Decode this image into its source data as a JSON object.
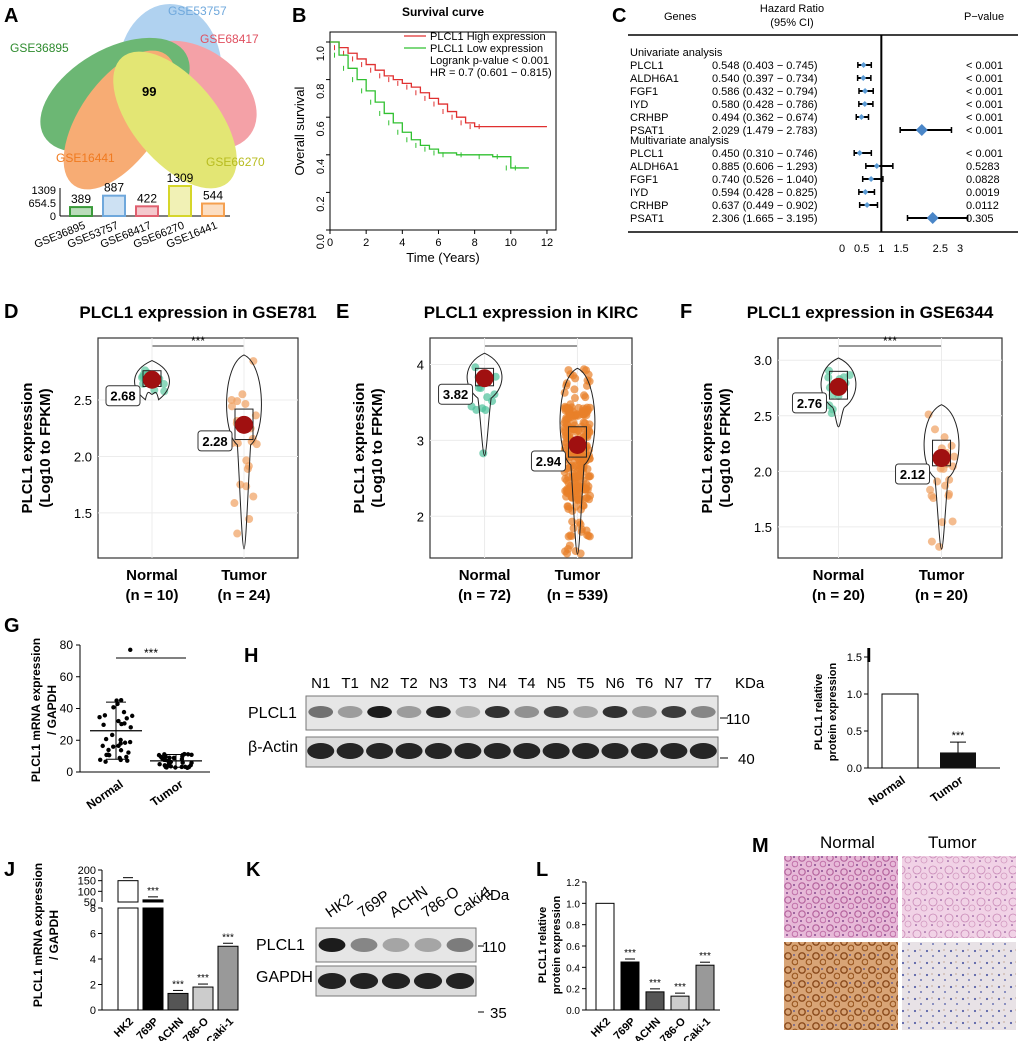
{
  "panels": {
    "A": "A",
    "B": "B",
    "C": "C",
    "D": "D",
    "E": "E",
    "F": "F",
    "G": "G",
    "H": "H",
    "I": "I",
    "J": "J",
    "K": "K",
    "L": "L",
    "M": "M"
  },
  "venn": {
    "sets": [
      "GSE53757",
      "GSE68417",
      "GSE36895",
      "GSE16441",
      "GSE66270"
    ],
    "center": "99",
    "bar": {
      "categories": [
        "GSE36895",
        "GSE53757",
        "GSE68417",
        "GSE66270",
        "GSE16441"
      ],
      "values": [
        389,
        887,
        422,
        1309,
        544
      ],
      "value_labels": [
        "389",
        "887",
        "422",
        "1309",
        "544"
      ],
      "ticks": [
        "1309",
        "654.5",
        "0"
      ],
      "colors": [
        "#3a9a3a",
        "#6fa8dc",
        "#e06070",
        "#d6d62a",
        "#f5a050"
      ]
    }
  },
  "survival": {
    "title": "Survival curve",
    "xlabel": "Time (Years)",
    "ylabel": "Overall survival",
    "legend": [
      "PLCL1 High expression",
      "PLCL1 Low expression"
    ],
    "logrank": "Logrank p-value < 0.001",
    "hr": "HR = 0.7 (0.601 − 0.815)",
    "xticks": [
      "0",
      "2",
      "4",
      "6",
      "8",
      "10",
      "12"
    ],
    "yticks": [
      "0.0",
      "0.2",
      "0.4",
      "0.6",
      "0.8",
      "1.0"
    ],
    "high": [
      [
        0,
        1
      ],
      [
        0.5,
        0.97
      ],
      [
        1,
        0.94
      ],
      [
        1.5,
        0.91
      ],
      [
        2,
        0.88
      ],
      [
        2.5,
        0.85
      ],
      [
        3,
        0.82
      ],
      [
        3.5,
        0.8
      ],
      [
        4,
        0.78
      ],
      [
        4.5,
        0.76
      ],
      [
        5,
        0.73
      ],
      [
        5.5,
        0.7
      ],
      [
        6,
        0.67
      ],
      [
        6.5,
        0.63
      ],
      [
        7,
        0.6
      ],
      [
        7.5,
        0.57
      ],
      [
        8,
        0.55
      ],
      [
        12,
        0.55
      ]
    ],
    "low": [
      [
        0,
        1
      ],
      [
        0.5,
        0.93
      ],
      [
        1,
        0.86
      ],
      [
        1.5,
        0.8
      ],
      [
        2,
        0.74
      ],
      [
        2.5,
        0.68
      ],
      [
        3,
        0.62
      ],
      [
        3.5,
        0.57
      ],
      [
        4,
        0.52
      ],
      [
        4.5,
        0.48
      ],
      [
        5,
        0.45
      ],
      [
        5.5,
        0.43
      ],
      [
        6,
        0.41
      ],
      [
        7,
        0.4
      ],
      [
        8,
        0.4
      ],
      [
        9,
        0.39
      ],
      [
        9.5,
        0.39
      ],
      [
        10,
        0.33
      ],
      [
        11,
        0.33
      ]
    ]
  },
  "forest": {
    "header": {
      "genes": "Genes",
      "hr": "Hazard Ratio",
      "ci": "(95% CI)",
      "p": "P−value"
    },
    "uni_label": "Univariate analysis",
    "multi_label": "Multivariate analysis",
    "rows": [
      {
        "gene": "PLCL1",
        "hr": "0.548 (0.403 − 0.745)",
        "p": "< 0.001",
        "est": 0.548,
        "lo": 0.403,
        "hi": 0.745,
        "color": "#5b9bd5"
      },
      {
        "gene": "ALDH6A1",
        "hr": "0.540 (0.397 − 0.734)",
        "p": "< 0.001",
        "est": 0.54,
        "lo": 0.397,
        "hi": 0.734,
        "color": "#5b9bd5"
      },
      {
        "gene": "FGF1",
        "hr": "0.586 (0.432 − 0.794)",
        "p": "< 0.001",
        "est": 0.586,
        "lo": 0.432,
        "hi": 0.794,
        "color": "#5b9bd5"
      },
      {
        "gene": "IYD",
        "hr": "0.580 (0.428 − 0.786)",
        "p": "< 0.001",
        "est": 0.58,
        "lo": 0.428,
        "hi": 0.786,
        "color": "#5b9bd5"
      },
      {
        "gene": "CRHBP",
        "hr": "0.494 (0.362 − 0.674)",
        "p": "< 0.001",
        "est": 0.494,
        "lo": 0.362,
        "hi": 0.674,
        "color": "#5b9bd5"
      },
      {
        "gene": "PSAT1",
        "hr": "2.029 (1.479 − 2.783)",
        "p": "< 0.001",
        "est": 2.029,
        "lo": 1.479,
        "hi": 2.783,
        "color": "#4a86c8"
      },
      {
        "gene": "PLCL1",
        "hr": "0.450 (0.310 − 0.746)",
        "p": "< 0.001",
        "est": 0.45,
        "lo": 0.31,
        "hi": 0.746,
        "color": "#5b9bd5"
      },
      {
        "gene": "ALDH6A1",
        "hr": "0.885 (0.606 − 1.293)",
        "p": "0.5283",
        "est": 0.885,
        "lo": 0.606,
        "hi": 1.293,
        "color": "#5b9bd5"
      },
      {
        "gene": "FGF1",
        "hr": "0.740 (0.526 − 1.040)",
        "p": "0.0828",
        "est": 0.74,
        "lo": 0.526,
        "hi": 1.04,
        "color": "#5b9bd5"
      },
      {
        "gene": "IYD",
        "hr": "0.594 (0.428 − 0.825)",
        "p": "0.0019",
        "est": 0.594,
        "lo": 0.428,
        "hi": 0.825,
        "color": "#5b9bd5"
      },
      {
        "gene": "CRHBP",
        "hr": "0.637 (0.449 − 0.902)",
        "p": "0.0112",
        "est": 0.637,
        "lo": 0.449,
        "hi": 0.902,
        "color": "#5b9bd5"
      },
      {
        "gene": "PSAT1",
        "hr": "2.306 (1.665 − 3.195)",
        "p": "0.305",
        "est": 2.306,
        "lo": 1.665,
        "hi": 3.195,
        "color": "#4a86c8"
      }
    ],
    "xticks": [
      "0",
      "0.5",
      "1",
      "1.5",
      "2.5",
      "3"
    ],
    "xtick_vals": [
      0,
      0.5,
      1,
      1.5,
      2.5,
      3
    ]
  },
  "violins": [
    {
      "title": "PLCL1 expression in GSE781",
      "ylabel1": "PLCL1 expression",
      "ylabel2": "(Log10 to FPKM)",
      "yticks": [
        "1.5",
        "2.0",
        "2.5"
      ],
      "ytick_vals": [
        1.5,
        2.0,
        2.5
      ],
      "ymin": 1.1,
      "ymax": 3.05,
      "sig": "***",
      "groups": [
        {
          "name": "Normal",
          "n": "(n = 10)",
          "mean": "2.68",
          "m": 2.68,
          "lo": 2.55,
          "hi": 2.85,
          "q1": 2.62,
          "q3": 2.76,
          "color": "#5cc8a0"
        },
        {
          "name": "Tumor",
          "n": "(n = 24)",
          "mean": "2.28",
          "m": 2.28,
          "lo": 1.18,
          "hi": 2.9,
          "q1": 2.15,
          "q3": 2.42,
          "color": "#f0a060"
        }
      ]
    },
    {
      "title": "PLCL1 expression in KIRC",
      "ylabel1": "PLCL1 expression",
      "ylabel2": "(Log10 to FPKM)",
      "yticks": [
        "2",
        "3",
        "4"
      ],
      "ytick_vals": [
        2,
        3,
        4
      ],
      "ymin": 1.45,
      "ymax": 4.35,
      "sig": "",
      "groups": [
        {
          "name": "Normal",
          "n": "(n = 72)",
          "mean": "3.82",
          "m": 3.82,
          "lo": 2.8,
          "hi": 4.15,
          "q1": 3.72,
          "q3": 3.95,
          "color": "#4cc09a"
        },
        {
          "name": "Tumor",
          "n": "(n = 539)",
          "mean": "2.94",
          "m": 2.94,
          "lo": 1.5,
          "hi": 3.95,
          "q1": 2.78,
          "q3": 3.18,
          "color": "#e8802a"
        }
      ]
    },
    {
      "title": "PLCL1 expression in GSE6344",
      "ylabel1": "PLCL1 expression",
      "ylabel2": "(Log10 to FPKM)",
      "yticks": [
        "1.5",
        "2.0",
        "2.5",
        "3.0"
      ],
      "ytick_vals": [
        1.5,
        2.0,
        2.5,
        3.0
      ],
      "ymin": 1.22,
      "ymax": 3.2,
      "sig": "***",
      "groups": [
        {
          "name": "Normal",
          "n": "(n = 20)",
          "mean": "2.76",
          "m": 2.76,
          "lo": 2.4,
          "hi": 3.02,
          "q1": 2.65,
          "q3": 2.9,
          "color": "#5cc8a0"
        },
        {
          "name": "Tumor",
          "n": "(n = 20)",
          "mean": "2.12",
          "m": 2.12,
          "lo": 1.3,
          "hi": 2.6,
          "q1": 2.05,
          "q3": 2.28,
          "color": "#f0a060"
        }
      ]
    }
  ],
  "panelG": {
    "ylabel1": "PLCL1 mRNA expression",
    "ylabel2": "/ GAPDH",
    "yticks": [
      "0",
      "20",
      "40",
      "60",
      "80"
    ],
    "categories": [
      "Normal",
      "Tumor"
    ],
    "means": [
      26,
      7
    ],
    "sd": [
      18,
      4
    ],
    "sig": "***"
  },
  "panelH": {
    "lanes": [
      "N1",
      "T1",
      "N2",
      "T2",
      "N3",
      "T3",
      "N4",
      "T4",
      "N5",
      "T5",
      "N6",
      "T6",
      "N7",
      "T7"
    ],
    "unit": "KDa",
    "rows": [
      "PLCL1",
      "β-Actin"
    ],
    "sizes": [
      "110",
      "40"
    ],
    "intensity": [
      0.55,
      0.35,
      0.95,
      0.35,
      0.9,
      0.25,
      0.85,
      0.4,
      0.8,
      0.3,
      0.85,
      0.35,
      0.8,
      0.45
    ]
  },
  "panelI": {
    "ylabel1": "PLCL1 relative",
    "ylabel2": "protein expression",
    "yticks": [
      "0.0",
      "0.5",
      "1.0",
      "1.5"
    ],
    "categories": [
      "Normal",
      "Tumor"
    ],
    "values": [
      1.0,
      0.21
    ],
    "sig": "***"
  },
  "panelJ": {
    "ylabel1": "PLCL1 mRNA expression",
    "ylabel2": "/ GAPDH",
    "yticks_top": [
      "100",
      "150",
      "200"
    ],
    "yticks_bottom": [
      "0",
      "2",
      "4",
      "6",
      "8",
      "50"
    ],
    "categories": [
      "HK2",
      "769P",
      "ACHN",
      "786-O",
      "Caki-1"
    ],
    "values": [
      150,
      60,
      1.3,
      1.8,
      5.0
    ],
    "sig": [
      "",
      "***",
      "***",
      "***",
      "***"
    ]
  },
  "panelK": {
    "lanes": [
      "HK2",
      "769P",
      "ACHN",
      "786-O",
      "Caki-1"
    ],
    "unit": "KDa",
    "rows": [
      "PLCL1",
      "GAPDH"
    ],
    "sizes": [
      "110",
      "35"
    ],
    "intensity": [
      0.95,
      0.45,
      0.3,
      0.3,
      0.5
    ]
  },
  "panelL": {
    "ylabel1": "PLCL1 relative",
    "ylabel2": "protein expression",
    "yticks": [
      "0.0",
      "0.2",
      "0.4",
      "0.6",
      "0.8",
      "1.0",
      "1.2"
    ],
    "categories": [
      "HK2",
      "769P",
      "ACHN",
      "786-O",
      "Caki-1"
    ],
    "values": [
      1.0,
      0.45,
      0.17,
      0.13,
      0.42
    ],
    "sig": [
      "",
      "***",
      "***",
      "***",
      "***"
    ]
  },
  "panelM": {
    "cols": [
      "Normal",
      "Tumor"
    ]
  }
}
